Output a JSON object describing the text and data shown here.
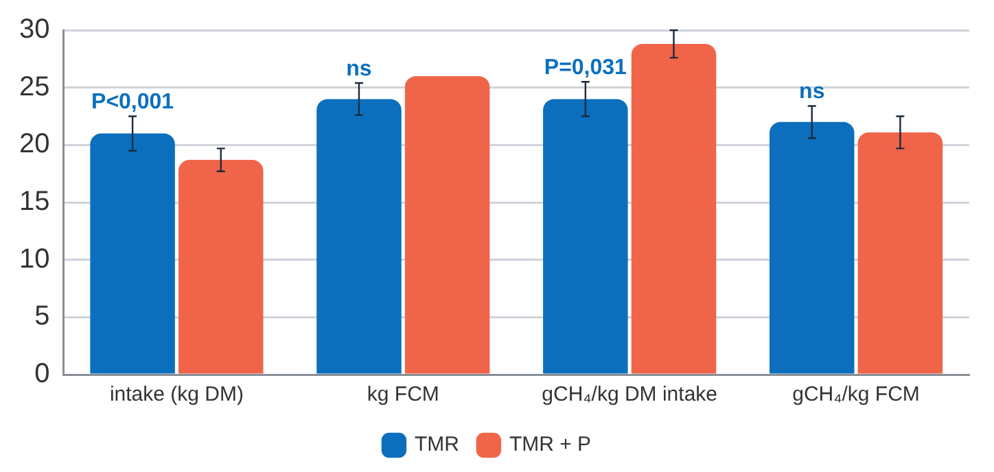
{
  "chart_data": {
    "type": "bar",
    "categories": [
      "intake (kg DM)",
      "kg FCM",
      "gCH₄/kg DM intake",
      "gCH₄/kg FCM"
    ],
    "series": [
      {
        "name": "TMR",
        "color": "#0b6fbe",
        "values": [
          21,
          24,
          24,
          22
        ],
        "errors": [
          1.5,
          1.4,
          1.5,
          1.4
        ]
      },
      {
        "name": "TMR + P",
        "color": "#f0654a",
        "values": [
          18.7,
          26,
          28.8,
          21.1
        ],
        "errors": [
          1,
          null,
          1.2,
          1.4
        ]
      }
    ],
    "ylim": [
      0,
      30
    ],
    "yticks": [
      0,
      5,
      10,
      15,
      20,
      25,
      30
    ],
    "grid": "y",
    "legend": "bottom",
    "annotations": [
      "P<0,001",
      "ns",
      "P=0,031",
      "ns"
    ]
  }
}
